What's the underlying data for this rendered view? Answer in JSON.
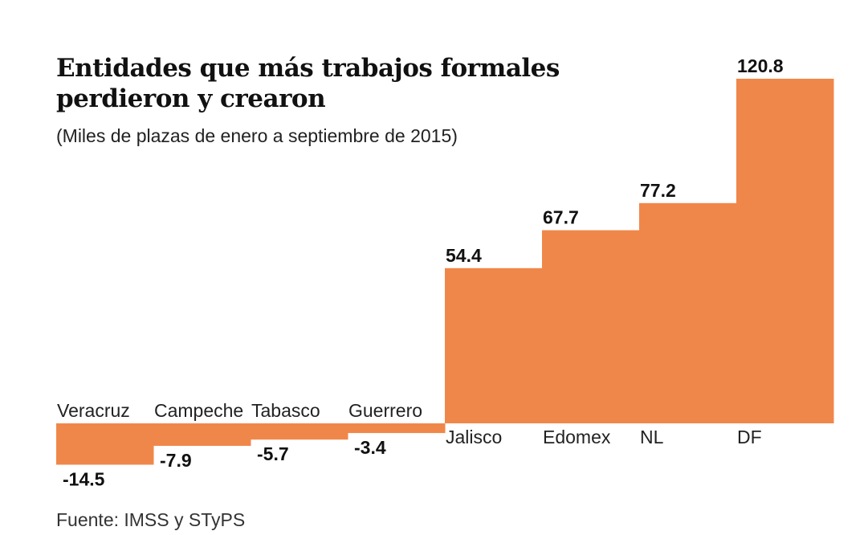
{
  "chart_data": {
    "type": "bar",
    "title": "Entidades que más trabajos formales perdieron y crearon",
    "subtitle": "(Miles de plazas de enero a septiembre de 2015)",
    "source": "Fuente: IMSS y STyPS",
    "categories": [
      "Veracruz",
      "Campeche",
      "Tabasco",
      "Guerrero",
      "Jalisco",
      "Edomex",
      "NL",
      "DF"
    ],
    "values": [
      -14.5,
      -7.9,
      -5.7,
      -3.4,
      54.4,
      67.7,
      77.2,
      120.8
    ],
    "value_labels": [
      "-14.5",
      "-7.9",
      "-5.7",
      "-3.4",
      "54.4",
      "67.7",
      "77.2",
      "120.8"
    ],
    "xlabel": "",
    "ylabel": "",
    "ylim": [
      -14.5,
      120.8
    ],
    "grid": false,
    "bar_color": "#F0874A"
  }
}
